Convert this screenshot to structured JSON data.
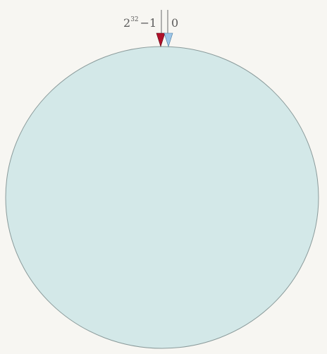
{
  "diagram": {
    "ring": {
      "fill": "#d3e8e8",
      "stroke": "#8a9a9a"
    },
    "markers": {
      "max": {
        "base": "2",
        "exponent": "32",
        "suffix": "−1",
        "arrow_color": "#b0102a"
      },
      "zero": {
        "label": "0",
        "arrow_color": "#9cc6e8"
      }
    },
    "line_color": "#6a6a6a"
  }
}
